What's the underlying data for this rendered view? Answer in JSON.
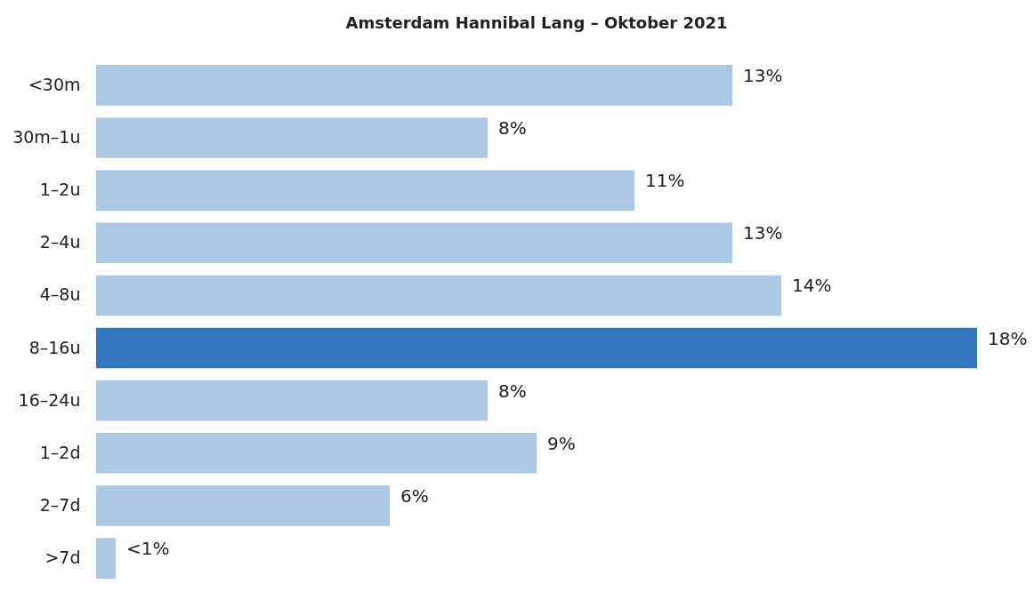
{
  "chart_data": {
    "type": "bar",
    "orientation": "horizontal",
    "title": "Amsterdam Hannibal Lang – Oktober 2021",
    "categories": [
      "<30m",
      "30m–1u",
      "1–2u",
      "2–4u",
      "4–8u",
      "8–16u",
      "16–24u",
      "1–2d",
      "2–7d",
      ">7d"
    ],
    "values": [
      13,
      8,
      11,
      13,
      14,
      18,
      8,
      9,
      6,
      0.4
    ],
    "colors": [
      "#adc8e5",
      "#adc8e5",
      "#adc8e5",
      "#adc8e5",
      "#adc8e5",
      "#3277bd",
      "#adc8e5",
      "#adc8e5",
      "#adc8e5",
      "#adc8e5"
    ],
    "value_labels": [
      "13%",
      "8%",
      "11%",
      "13%",
      "14%",
      "18%",
      "8%",
      "9%",
      "6%",
      "<1%"
    ],
    "grid": false
  }
}
